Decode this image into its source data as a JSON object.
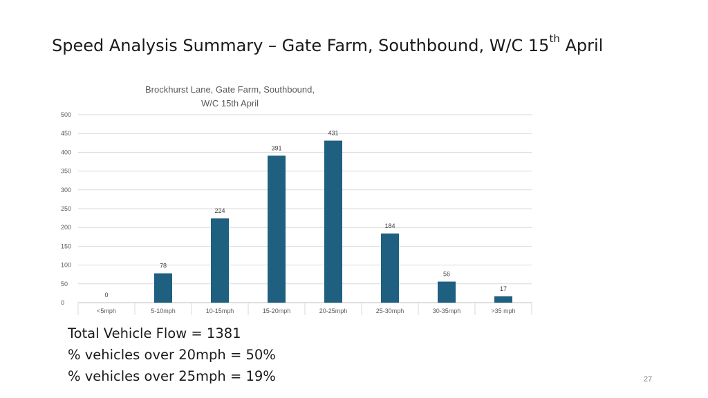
{
  "slide": {
    "title_main": "Speed Analysis Summary – Gate Farm, Southbound, W/C 15",
    "title_sup": "th",
    "title_end": " April",
    "page_number": "27"
  },
  "stats": {
    "total_flow": "Total Vehicle Flow = 1381",
    "over_20": "% vehicles over 20mph = 50%",
    "over_25": "% vehicles over 25mph = 19%"
  },
  "chart_data": {
    "type": "bar",
    "title_line1": "Brockhurst Lane, Gate Farm, Southbound,",
    "title_line2": "W/C 15th April",
    "categories": [
      "<5mph",
      "5-10mph",
      "10-15mph",
      "15-20mph",
      "20-25mph",
      "25-30mph",
      "30-35mph",
      ">35 mph"
    ],
    "values": [
      0,
      78,
      224,
      391,
      431,
      184,
      56,
      17
    ],
    "ylim": [
      0,
      500
    ],
    "yticks": [
      0,
      50,
      100,
      150,
      200,
      250,
      300,
      350,
      400,
      450,
      500
    ],
    "grid": true,
    "bar_color": "#1f5f80"
  }
}
